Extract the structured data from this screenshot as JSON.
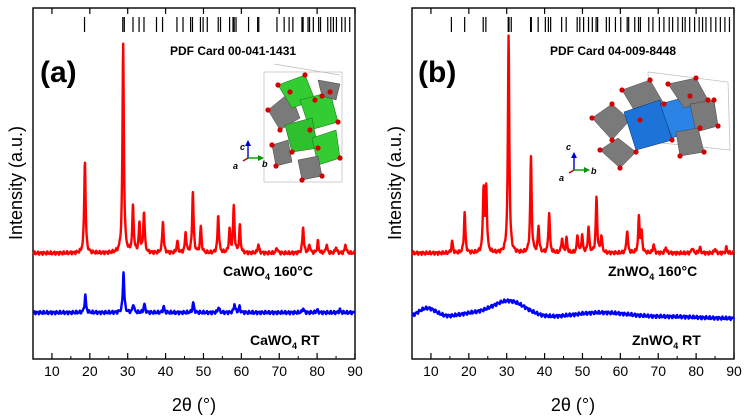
{
  "chart_data": [
    {
      "type": "line",
      "panel": "(a)",
      "pdf_card": "PDF Card  00-041-1431",
      "xlabel": "2θ (°)",
      "ylabel": "Intensity (a.u.)",
      "xlim": [
        5,
        90
      ],
      "ylim": [
        0,
        1
      ],
      "x_ticks": [
        "10",
        "20",
        "30",
        "40",
        "50",
        "60",
        "70",
        "80",
        "90"
      ],
      "reference_lines": [
        18.6,
        28.7,
        29.1,
        31.4,
        33.0,
        34.3,
        37.6,
        39.2,
        43.0,
        44.6,
        46.6,
        47.1,
        49.2,
        49.9,
        51.0,
        53.9,
        54.5,
        56.9,
        57.8,
        58.1,
        58.6,
        61.9,
        64.3,
        64.6,
        69.4,
        71.3,
        72.6,
        73.6,
        76.0,
        76.3,
        77.6,
        78.0,
        79.0,
        80.4,
        80.9,
        82.8,
        83.6,
        84.3,
        85.1,
        86.5,
        87.4,
        88.6
      ],
      "series": [
        {
          "name": "CaWO4 160°C",
          "color": "#ff0000",
          "baseline": 0.265,
          "peaks": [
            [
              18.7,
              0.32
            ],
            [
              28.8,
              0.72
            ],
            [
              31.4,
              0.16
            ],
            [
              33.1,
              0.1
            ],
            [
              34.3,
              0.14
            ],
            [
              39.3,
              0.11
            ],
            [
              43.1,
              0.04
            ],
            [
              45.3,
              0.07
            ],
            [
              47.2,
              0.21
            ],
            [
              49.3,
              0.09
            ],
            [
              53.9,
              0.13
            ],
            [
              56.9,
              0.08
            ],
            [
              58.0,
              0.16
            ],
            [
              59.6,
              0.09
            ],
            [
              64.5,
              0.03
            ],
            [
              69.4,
              0.02
            ],
            [
              76.3,
              0.09
            ],
            [
              78.0,
              0.03
            ],
            [
              80.2,
              0.04
            ],
            [
              82.5,
              0.03
            ],
            [
              85.0,
              0.02
            ],
            [
              87.5,
              0.03
            ]
          ]
        },
        {
          "name": "CaWO4 RT",
          "color": "#0000ff",
          "baseline": 0.06,
          "peaks": [
            [
              18.8,
              0.06
            ],
            [
              28.9,
              0.14
            ],
            [
              31.5,
              0.03
            ],
            [
              34.4,
              0.03
            ],
            [
              39.5,
              0.02
            ],
            [
              47.3,
              0.035
            ],
            [
              54.0,
              0.02
            ],
            [
              58.2,
              0.03
            ],
            [
              59.5,
              0.02
            ],
            [
              76.3,
              0.015
            ],
            [
              80.0,
              0.01
            ],
            [
              86.0,
              0.01
            ]
          ]
        }
      ],
      "series_labels": [
        {
          "main": "CaWO",
          "sub": "4",
          "rest": " 160°C"
        },
        {
          "main": "CaWO",
          "sub": "4",
          "rest": " RT"
        }
      ],
      "inset_axes": {
        "c": "c",
        "a": "a",
        "b": "b"
      }
    },
    {
      "type": "line",
      "panel": "(b)",
      "pdf_card": "PDF Card 04-009-8448",
      "xlabel": "2θ (°)",
      "ylabel": "Intensity (a.u.)",
      "xlim": [
        5,
        90
      ],
      "ylim": [
        0,
        1
      ],
      "x_ticks": [
        "10",
        "20",
        "30",
        "40",
        "50",
        "60",
        "70",
        "80",
        "90"
      ],
      "reference_lines": [
        15.4,
        18.9,
        23.8,
        24.5,
        30.4,
        30.6,
        31.2,
        36.3,
        36.5,
        38.3,
        40.2,
        41.0,
        41.6,
        44.5,
        45.7,
        48.6,
        49.3,
        50.3,
        51.6,
        52.6,
        53.6,
        54.0,
        56.3,
        57.1,
        58.7,
        60.1,
        61.8,
        62.2,
        63.8,
        64.8,
        65.3,
        67.5,
        68.6,
        70.3,
        71.5,
        72.9,
        73.8,
        75.2,
        76.4,
        77.1,
        78.3,
        79.6,
        80.8,
        81.7,
        82.6,
        83.9,
        85.2,
        86.4,
        87.6,
        88.8
      ],
      "series": [
        {
          "name": "ZnWO4 160°C",
          "color": "#ff0000",
          "baseline": 0.265,
          "peaks": [
            [
              15.6,
              0.04
            ],
            [
              18.9,
              0.14
            ],
            [
              23.9,
              0.22
            ],
            [
              24.6,
              0.22
            ],
            [
              30.5,
              0.75
            ],
            [
              36.4,
              0.33
            ],
            [
              38.4,
              0.09
            ],
            [
              41.2,
              0.14
            ],
            [
              44.6,
              0.05
            ],
            [
              45.8,
              0.05
            ],
            [
              48.7,
              0.06
            ],
            [
              49.9,
              0.06
            ],
            [
              51.6,
              0.09
            ],
            [
              53.7,
              0.19
            ],
            [
              55.0,
              0.06
            ],
            [
              61.8,
              0.08
            ],
            [
              64.9,
              0.12
            ],
            [
              65.6,
              0.07
            ],
            [
              68.8,
              0.03
            ],
            [
              72.0,
              0.02
            ],
            [
              79.0,
              0.02
            ],
            [
              81.0,
              0.02
            ],
            [
              85.0,
              0.015
            ],
            [
              88.0,
              0.02
            ]
          ]
        },
        {
          "name": "ZnWO4 RT",
          "color": "#0000ff",
          "baseline": 0.04,
          "broad": [
            [
              9,
              0.035,
              2.5
            ],
            [
              20,
              0.015,
              4
            ],
            [
              30.5,
              0.06,
              4.5
            ],
            [
              55,
              0.02,
              8
            ],
            [
              75,
              0.005,
              6
            ]
          ]
        }
      ],
      "series_labels": [
        {
          "main": "ZnWO",
          "sub": "4",
          "rest": " 160°C"
        },
        {
          "main": "ZnWO",
          "sub": "4",
          "rest": " RT"
        }
      ],
      "inset_axes": {
        "c": "c",
        "a": "a",
        "b": "b"
      }
    }
  ]
}
